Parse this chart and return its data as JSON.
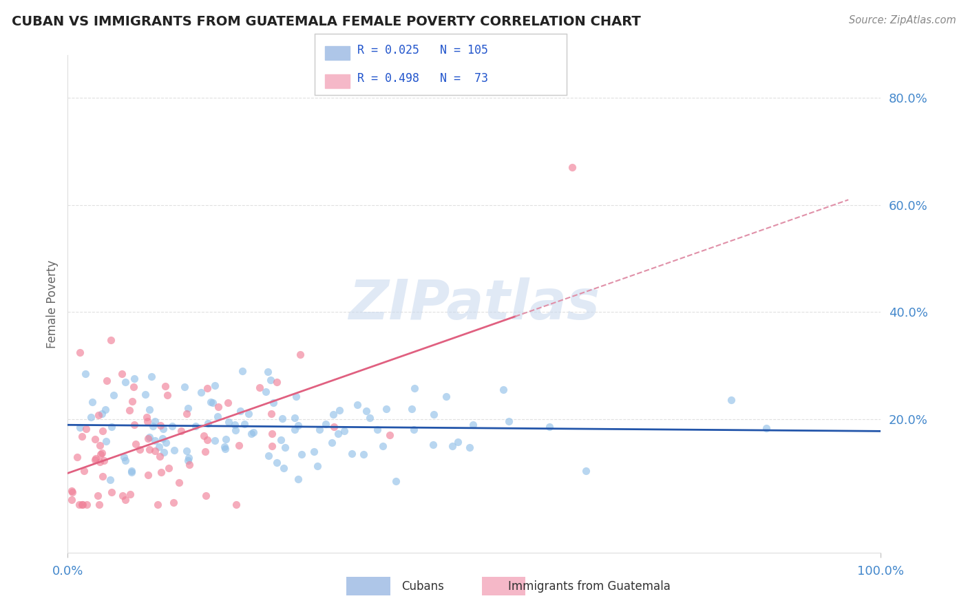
{
  "title": "CUBAN VS IMMIGRANTS FROM GUATEMALA FEMALE POVERTY CORRELATION CHART",
  "source": "Source: ZipAtlas.com",
  "ylabel": "Female Poverty",
  "xlim": [
    0,
    1
  ],
  "ylim": [
    -0.05,
    0.88
  ],
  "yticks": [
    0.2,
    0.4,
    0.6,
    0.8
  ],
  "ytick_labels": [
    "20.0%",
    "40.0%",
    "60.0%",
    "80.0%"
  ],
  "series1_name": "Cubans",
  "series2_name": "Immigrants from Guatemala",
  "series1_color": "#92c0e8",
  "series2_color": "#f08098",
  "series1_line_color": "#2255aa",
  "series2_line_color": "#e06080",
  "series2_dash_color": "#e090a8",
  "watermark_color": "#c8d8ee",
  "background_color": "#ffffff",
  "grid_color": "#cccccc",
  "title_color": "#222222",
  "axis_label_color": "#4488cc",
  "seed": 42
}
